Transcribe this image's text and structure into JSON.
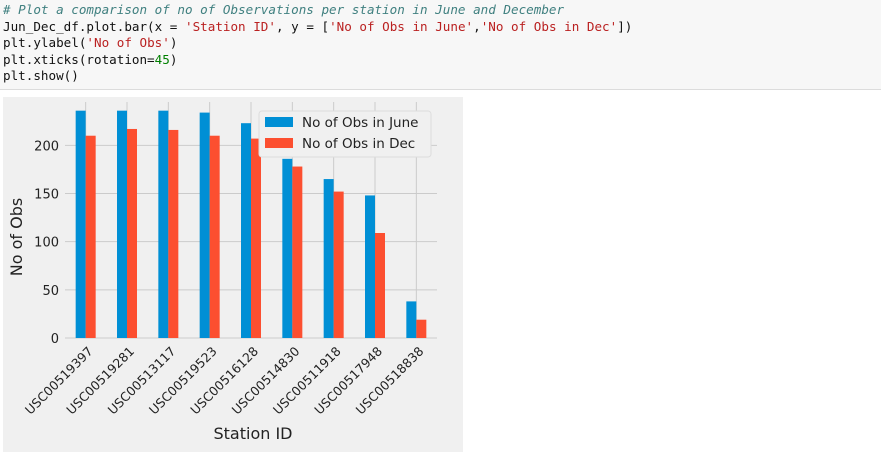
{
  "code_cell": {
    "line1": "# Plot a comparison of no of Observations per station in June and December",
    "line2_a": "Jun_Dec_df.plot.bar(x = ",
    "line2_b": "'Station ID'",
    "line2_c": ", y = [",
    "line2_d": "'No of Obs in June'",
    "line2_e": ",",
    "line2_f": "'No of Obs in Dec'",
    "line2_g": "])",
    "line3_a": "plt.ylabel(",
    "line3_b": "'No of Obs'",
    "line3_c": ")",
    "line4_a": "plt.xticks(rotation=",
    "line4_b": "45",
    "line4_c": ")",
    "line5": "plt.show()"
  },
  "colors": {
    "june": "#008fd5",
    "dec": "#fc4f30",
    "plot_bg": "#f0f0f0",
    "grid": "#cbcbcb"
  },
  "chart_data": {
    "type": "bar",
    "xlabel": "Station ID",
    "ylabel": "No of Obs",
    "ylim": [
      0,
      245
    ],
    "yticks": [
      0,
      50,
      100,
      150,
      200
    ],
    "grid": true,
    "legend_position": "top-right",
    "categories": [
      "USC00519397",
      "USC00519281",
      "USC00513117",
      "USC00519523",
      "USC00516128",
      "USC00514830",
      "USC00511918",
      "USC00517948",
      "USC00518838"
    ],
    "series": [
      {
        "name": "No of Obs in June",
        "values": [
          236,
          236,
          236,
          234,
          223,
          186,
          165,
          148,
          38
        ]
      },
      {
        "name": "No of Obs in Dec",
        "values": [
          210,
          217,
          216,
          210,
          207,
          178,
          152,
          109,
          19
        ]
      }
    ]
  }
}
